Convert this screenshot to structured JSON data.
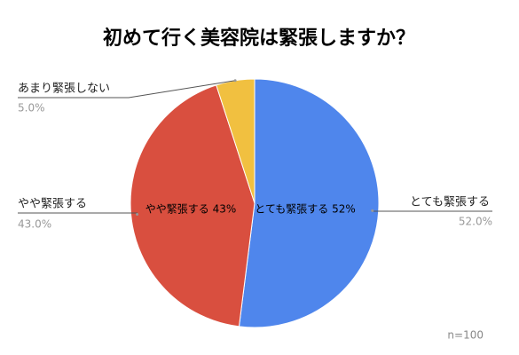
{
  "chart_data": {
    "type": "pie",
    "title": "初めて行く美容院は緊張しますか？",
    "categories": [
      "とても緊張する",
      "やや緊張する",
      "あまり緊張しない"
    ],
    "values": [
      52,
      43,
      5
    ],
    "value_labels": [
      "52.0%",
      "43.0%",
      "5.0%"
    ],
    "inner_labels": [
      "とても緊張する 52%",
      "やや緊張する 43%",
      null
    ],
    "colors": [
      "#4f86ec",
      "#d94f3f",
      "#f1c040"
    ],
    "note": "n=100"
  }
}
